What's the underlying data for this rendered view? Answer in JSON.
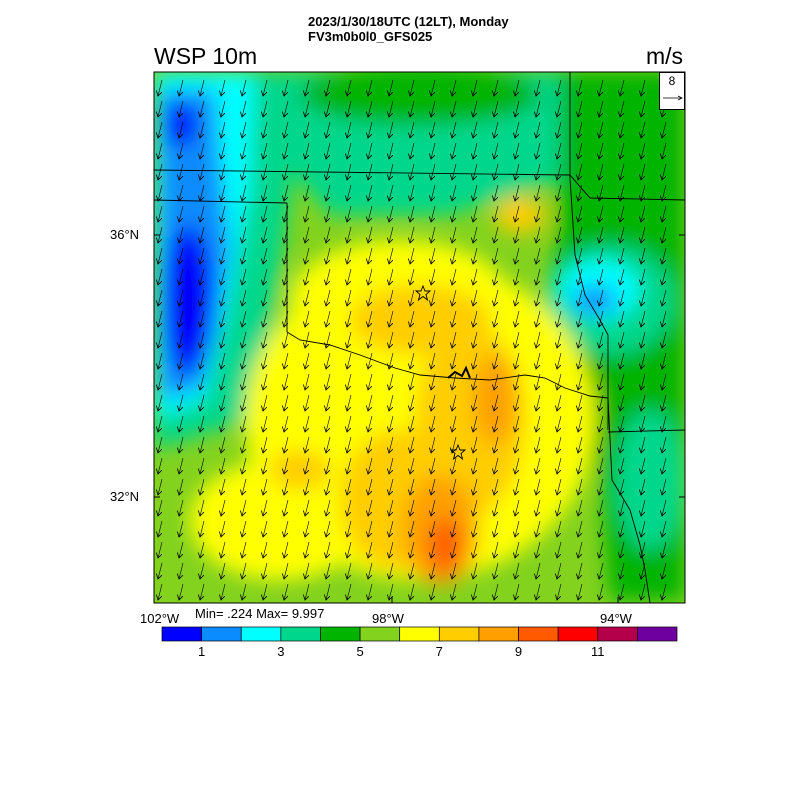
{
  "header": {
    "title_line1": "2023/1/30/18UTC (12LT), Monday",
    "title_line2": "FV3m0b0l0_GFS025",
    "variable": "WSP 10m",
    "units": "m/s"
  },
  "map": {
    "lat_labels": [
      "36°N",
      "32°N"
    ],
    "lon_labels": [
      "102°W",
      "98°W",
      "94°W"
    ],
    "wind_field": "wind vectors blowing from north-northeast toward south-southwest",
    "markers": [
      "star",
      "star"
    ],
    "reference_vector": "8"
  },
  "stats": {
    "text": "Min= .224 Max= 9.997"
  },
  "colorbar": {
    "colors": [
      "#0000ff",
      "#0a8cff",
      "#00ffff",
      "#00d78c",
      "#00b400",
      "#82d21e",
      "#ffff00",
      "#ffcd00",
      "#ffa000",
      "#ff5a00",
      "#ff0000",
      "#b4004b",
      "#6e00a0"
    ],
    "tick_labels": [
      "1",
      "3",
      "5",
      "7",
      "9",
      "11"
    ],
    "tick_values": [
      1,
      3,
      5,
      7,
      9,
      11
    ]
  }
}
